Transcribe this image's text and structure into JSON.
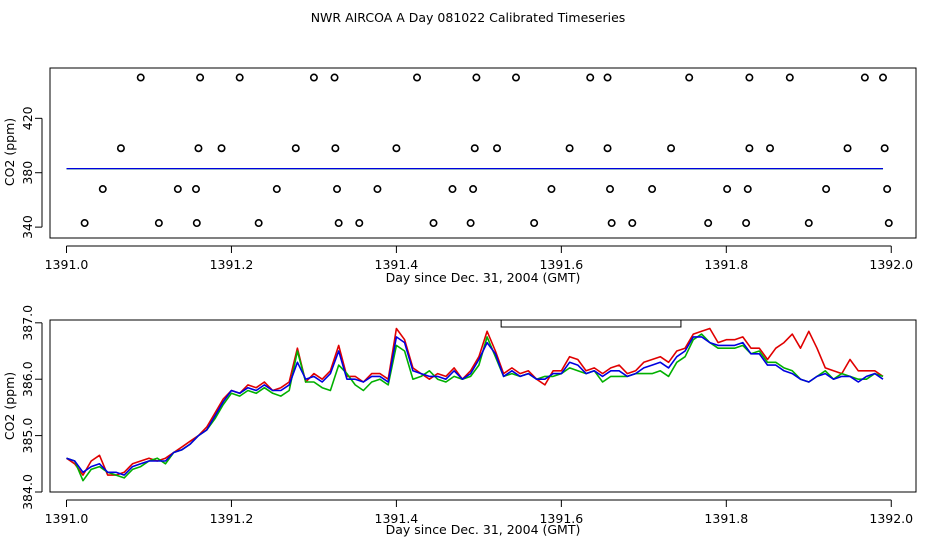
{
  "title": "NWR AIRCOA A  Day 081022  Calibrated Timeseries",
  "colors": {
    "red": "#e00000",
    "green": "#00b000",
    "blue": "#0000e0",
    "axis": "#000000"
  },
  "chart_data": [
    {
      "type": "scatter",
      "xlabel": "Day since Dec. 31, 2004 (GMT)",
      "ylabel": "CO2 (ppm)",
      "xlim": [
        1390.98,
        1392.03
      ],
      "ylim": [
        332,
        457
      ],
      "xticks": [
        1391.0,
        1391.2,
        1391.4,
        1391.6,
        1391.8,
        1392.0
      ],
      "xtick_labels": [
        "1391.0",
        "1391.2",
        "1391.4",
        "1391.6",
        "1391.8",
        "1392.0"
      ],
      "yticks": [
        340,
        380,
        420
      ],
      "ytick_labels": [
        "340",
        "380",
        "420"
      ],
      "points_top": [
        1391.09,
        1391.162,
        1391.21,
        1391.3,
        1391.325,
        1391.425,
        1391.497,
        1391.545,
        1391.635,
        1391.656,
        1391.755,
        1391.828,
        1391.877,
        1391.968,
        1391.99
      ],
      "y_top": 450,
      "points_400": [
        1391.066,
        1391.16,
        1391.188,
        1391.278,
        1391.326,
        1391.4,
        1391.495,
        1391.522,
        1391.61,
        1391.656,
        1391.733,
        1391.828,
        1391.853,
        1391.947,
        1391.992
      ],
      "y_400": 398,
      "points_368": [
        1391.044,
        1391.135,
        1391.157,
        1391.255,
        1391.328,
        1391.377,
        1391.468,
        1391.493,
        1391.588,
        1391.659,
        1391.71,
        1391.801,
        1391.826,
        1391.921,
        1391.995
      ],
      "y_368": 368,
      "points_340": [
        1391.022,
        1391.112,
        1391.158,
        1391.233,
        1391.33,
        1391.355,
        1391.445,
        1391.49,
        1391.567,
        1391.661,
        1391.686,
        1391.778,
        1391.824,
        1391.9,
        1391.997
      ],
      "y_340": 343,
      "line": {
        "x_start": 1391.0,
        "x_end": 1391.99,
        "y": 383
      }
    },
    {
      "type": "line",
      "xlabel": "Day since Dec. 31, 2004 (GMT)",
      "ylabel": "CO2 (ppm)",
      "xlim": [
        1390.98,
        1392.03
      ],
      "ylim": [
        384.0,
        387.05
      ],
      "xticks": [
        1391.0,
        1391.2,
        1391.4,
        1391.6,
        1391.8,
        1392.0
      ],
      "xtick_labels": [
        "1391.0",
        "1391.2",
        "1391.4",
        "1391.6",
        "1391.8",
        "1392.0"
      ],
      "yticks": [
        384.0,
        385.0,
        386.0,
        387.0
      ],
      "ytick_labels": [
        "384.0",
        "385.0",
        "386.0",
        "387.0"
      ],
      "bracket": {
        "x_start": 1391.527,
        "x_end": 1391.745
      },
      "x": [
        1391.0,
        1391.01,
        1391.02,
        1391.03,
        1391.04,
        1391.05,
        1391.06,
        1391.07,
        1391.08,
        1391.09,
        1391.1,
        1391.11,
        1391.12,
        1391.13,
        1391.14,
        1391.15,
        1391.16,
        1391.17,
        1391.18,
        1391.19,
        1391.2,
        1391.21,
        1391.22,
        1391.23,
        1391.24,
        1391.25,
        1391.26,
        1391.27,
        1391.28,
        1391.29,
        1391.3,
        1391.31,
        1391.32,
        1391.33,
        1391.34,
        1391.35,
        1391.36,
        1391.37,
        1391.38,
        1391.39,
        1391.4,
        1391.41,
        1391.42,
        1391.43,
        1391.44,
        1391.45,
        1391.46,
        1391.47,
        1391.48,
        1391.49,
        1391.5,
        1391.51,
        1391.52,
        1391.53,
        1391.54,
        1391.55,
        1391.56,
        1391.57,
        1391.58,
        1391.59,
        1391.6,
        1391.61,
        1391.62,
        1391.63,
        1391.64,
        1391.65,
        1391.66,
        1391.67,
        1391.68,
        1391.69,
        1391.7,
        1391.71,
        1391.72,
        1391.73,
        1391.74,
        1391.75,
        1391.76,
        1391.77,
        1391.78,
        1391.79,
        1391.8,
        1391.81,
        1391.82,
        1391.83,
        1391.84,
        1391.85,
        1391.86,
        1391.87,
        1391.88,
        1391.89,
        1391.9,
        1391.91,
        1391.92,
        1391.93,
        1391.94,
        1391.95,
        1391.96,
        1391.97,
        1391.98,
        1391.99
      ],
      "series": [
        {
          "color": "red",
          "values": [
            384.6,
            384.5,
            384.3,
            384.55,
            384.65,
            384.3,
            384.3,
            384.35,
            384.5,
            384.55,
            384.6,
            384.55,
            384.6,
            384.7,
            384.8,
            384.9,
            385.0,
            385.15,
            385.4,
            385.65,
            385.8,
            385.75,
            385.9,
            385.85,
            385.95,
            385.8,
            385.85,
            385.95,
            386.55,
            385.95,
            386.1,
            386.0,
            386.15,
            386.6,
            386.05,
            386.05,
            385.95,
            386.1,
            386.1,
            386.0,
            386.9,
            386.7,
            386.2,
            386.1,
            386.0,
            386.1,
            386.05,
            386.2,
            386.0,
            386.15,
            386.4,
            386.85,
            386.5,
            386.1,
            386.2,
            386.1,
            386.15,
            386.0,
            385.9,
            386.15,
            386.15,
            386.4,
            386.35,
            386.15,
            386.2,
            386.1,
            386.2,
            386.25,
            386.1,
            386.15,
            386.3,
            386.35,
            386.4,
            386.3,
            386.5,
            386.55,
            386.8,
            386.85,
            386.9,
            386.65,
            386.7,
            386.7,
            386.75,
            386.55,
            386.55,
            386.35,
            386.55,
            386.65,
            386.8,
            386.55,
            386.85,
            386.55,
            386.2,
            386.15,
            386.1,
            386.35,
            386.15,
            386.15,
            386.15,
            386.05
          ]
        },
        {
          "color": "green",
          "values": [
            384.6,
            384.55,
            384.2,
            384.4,
            384.45,
            384.35,
            384.3,
            384.25,
            384.4,
            384.45,
            384.55,
            384.6,
            384.5,
            384.7,
            384.75,
            384.85,
            385.0,
            385.1,
            385.3,
            385.55,
            385.75,
            385.7,
            385.8,
            385.75,
            385.85,
            385.75,
            385.7,
            385.8,
            386.5,
            385.95,
            385.95,
            385.85,
            385.8,
            386.25,
            386.1,
            385.9,
            385.8,
            385.95,
            386.0,
            385.9,
            386.6,
            386.5,
            386.0,
            386.05,
            386.15,
            386.0,
            385.95,
            386.05,
            386.0,
            386.05,
            386.25,
            386.75,
            386.4,
            386.05,
            386.1,
            386.05,
            386.1,
            386.0,
            386.05,
            386.05,
            386.1,
            386.2,
            386.15,
            386.1,
            386.15,
            385.95,
            386.05,
            386.05,
            386.05,
            386.1,
            386.1,
            386.1,
            386.15,
            386.05,
            386.3,
            386.4,
            386.7,
            386.8,
            386.65,
            386.55,
            386.55,
            386.55,
            386.6,
            386.45,
            386.5,
            386.3,
            386.3,
            386.2,
            386.15,
            386.0,
            385.95,
            386.05,
            386.15,
            386.0,
            386.1,
            386.05,
            386.0,
            386.0,
            386.1,
            386.05
          ]
        },
        {
          "color": "blue",
          "values": [
            384.6,
            384.55,
            384.35,
            384.45,
            384.5,
            384.35,
            384.35,
            384.3,
            384.45,
            384.5,
            384.55,
            384.55,
            384.55,
            384.7,
            384.75,
            384.85,
            385.0,
            385.1,
            385.35,
            385.6,
            385.8,
            385.75,
            385.85,
            385.8,
            385.9,
            385.8,
            385.8,
            385.9,
            386.3,
            386.0,
            386.05,
            385.95,
            386.1,
            386.5,
            386.0,
            386.0,
            385.95,
            386.05,
            386.05,
            385.95,
            386.75,
            386.65,
            386.15,
            386.1,
            386.05,
            386.05,
            386.0,
            386.15,
            386.0,
            386.1,
            386.35,
            386.65,
            386.45,
            386.05,
            386.15,
            386.05,
            386.1,
            386.0,
            386.0,
            386.1,
            386.1,
            386.3,
            386.25,
            386.1,
            386.15,
            386.05,
            386.15,
            386.15,
            386.05,
            386.1,
            386.2,
            386.25,
            386.3,
            386.2,
            386.4,
            386.5,
            386.75,
            386.75,
            386.65,
            386.6,
            386.6,
            386.6,
            386.65,
            386.45,
            386.45,
            386.25,
            386.25,
            386.15,
            386.1,
            386.0,
            385.95,
            386.05,
            386.1,
            386.0,
            386.05,
            386.05,
            385.95,
            386.05,
            386.1,
            386.0
          ]
        }
      ]
    }
  ]
}
